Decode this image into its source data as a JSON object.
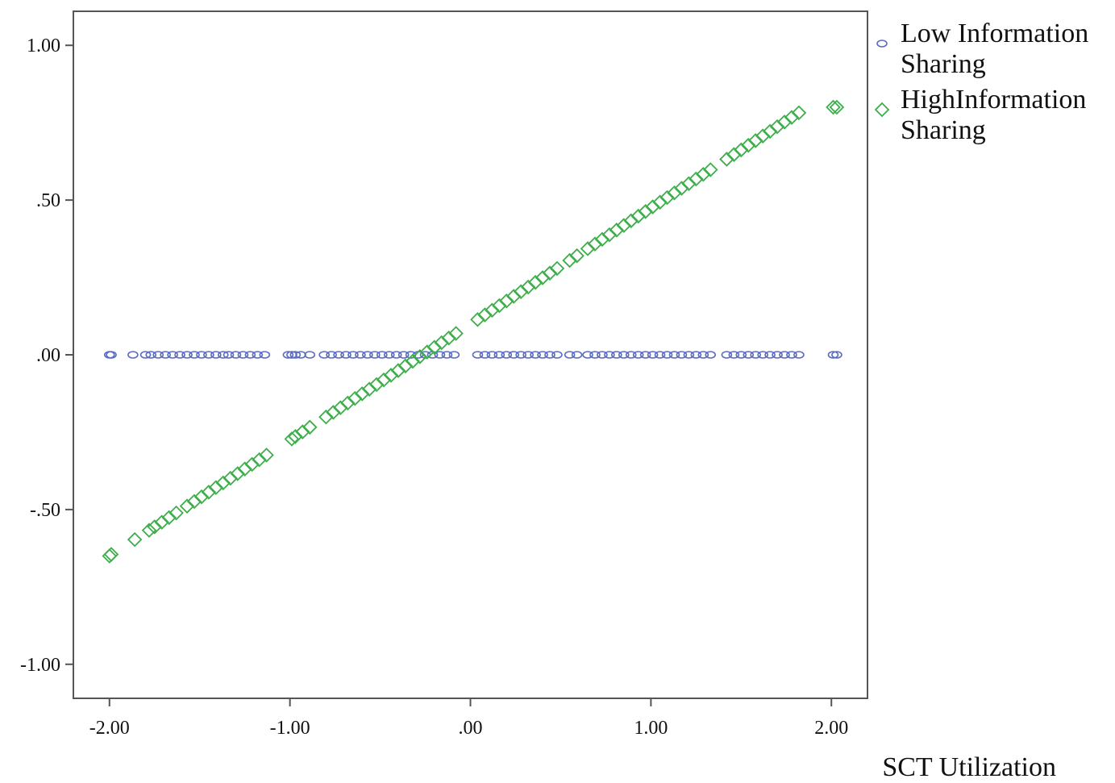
{
  "chart_data": {
    "type": "scatter",
    "xlabel": "SCT Utilization",
    "ylabel": "",
    "xlim": [
      -2.2,
      2.2
    ],
    "ylim": [
      -1.11,
      1.11
    ],
    "x_ticks": [
      -2,
      -1,
      0,
      1,
      2
    ],
    "x_tick_labels": [
      "-2.00",
      "-1.00",
      ".00",
      "1.00",
      "2.00"
    ],
    "y_ticks": [
      1,
      0.5,
      0,
      -0.5,
      -1
    ],
    "y_tick_labels": [
      "1.00",
      ".50",
      ".00",
      "-.50",
      "-1.00"
    ],
    "grid": false,
    "legend_position": "top-right, outside plot",
    "series": [
      {
        "name": "Low Information Sharing",
        "name_lines": [
          "Low Information",
          "Sharing"
        ],
        "marker": "circle",
        "color": "#5a6bc0",
        "x": [
          -2.0,
          -1.99,
          -1.87,
          -1.8,
          -1.77,
          -1.73,
          -1.69,
          -1.65,
          -1.61,
          -1.57,
          -1.53,
          -1.49,
          -1.45,
          -1.41,
          -1.37,
          -1.34,
          -1.3,
          -1.26,
          -1.22,
          -1.18,
          -1.14,
          -1.01,
          -0.99,
          -0.97,
          -0.94,
          -0.89,
          -0.81,
          -0.77,
          -0.73,
          -0.69,
          -0.65,
          -0.61,
          -0.57,
          -0.53,
          -0.49,
          -0.45,
          -0.41,
          -0.37,
          -0.33,
          -0.29,
          -0.25,
          -0.21,
          -0.17,
          -0.13,
          -0.09,
          0.04,
          0.08,
          0.12,
          0.16,
          0.2,
          0.24,
          0.28,
          0.32,
          0.36,
          0.4,
          0.44,
          0.48,
          0.55,
          0.59,
          0.65,
          0.69,
          0.73,
          0.77,
          0.81,
          0.85,
          0.89,
          0.93,
          0.97,
          1.01,
          1.05,
          1.09,
          1.13,
          1.17,
          1.21,
          1.25,
          1.29,
          1.33,
          1.42,
          1.46,
          1.5,
          1.54,
          1.58,
          1.62,
          1.66,
          1.7,
          1.74,
          1.78,
          1.82,
          2.01,
          2.03
        ],
        "y": [
          0,
          0,
          0,
          0,
          0,
          0,
          0,
          0,
          0,
          0,
          0,
          0,
          0,
          0,
          0,
          0,
          0,
          0,
          0,
          0,
          0,
          0,
          0,
          0,
          0,
          0,
          0,
          0,
          0,
          0,
          0,
          0,
          0,
          0,
          0,
          0,
          0,
          0,
          0,
          0,
          0,
          0,
          0,
          0,
          0,
          0,
          0,
          0,
          0,
          0,
          0,
          0,
          0,
          0,
          0,
          0,
          0,
          0,
          0,
          0,
          0,
          0,
          0,
          0,
          0,
          0,
          0,
          0,
          0,
          0,
          0,
          0,
          0,
          0,
          0,
          0,
          0,
          0,
          0,
          0,
          0,
          0,
          0,
          0,
          0,
          0,
          0,
          0,
          0,
          0
        ]
      },
      {
        "name": "HighInformation Sharing",
        "name_lines": [
          "HighInformation",
          "Sharing"
        ],
        "marker": "diamond",
        "color": "#3cae4a",
        "x": [
          -2.0,
          -1.99,
          -1.86,
          -1.78,
          -1.75,
          -1.71,
          -1.67,
          -1.63,
          -1.57,
          -1.53,
          -1.49,
          -1.45,
          -1.41,
          -1.37,
          -1.33,
          -1.29,
          -1.25,
          -1.21,
          -1.17,
          -1.13,
          -0.99,
          -0.97,
          -0.93,
          -0.89,
          -0.8,
          -0.76,
          -0.72,
          -0.68,
          -0.64,
          -0.6,
          -0.56,
          -0.52,
          -0.48,
          -0.44,
          -0.4,
          -0.36,
          -0.32,
          -0.28,
          -0.24,
          -0.2,
          -0.16,
          -0.12,
          -0.08,
          0.04,
          0.08,
          0.12,
          0.16,
          0.2,
          0.24,
          0.28,
          0.32,
          0.36,
          0.4,
          0.44,
          0.48,
          0.55,
          0.59,
          0.65,
          0.69,
          0.73,
          0.77,
          0.81,
          0.85,
          0.89,
          0.93,
          0.97,
          1.01,
          1.05,
          1.09,
          1.13,
          1.17,
          1.21,
          1.25,
          1.29,
          1.33,
          1.42,
          1.46,
          1.5,
          1.54,
          1.58,
          1.62,
          1.66,
          1.7,
          1.74,
          1.78,
          1.82,
          2.01,
          2.03
        ],
        "y": [
          -0.65,
          -0.645,
          -0.597,
          -0.567,
          -0.556,
          -0.541,
          -0.526,
          -0.511,
          -0.489,
          -0.474,
          -0.459,
          -0.444,
          -0.429,
          -0.414,
          -0.399,
          -0.384,
          -0.369,
          -0.354,
          -0.339,
          -0.324,
          -0.272,
          -0.264,
          -0.249,
          -0.234,
          -0.201,
          -0.186,
          -0.171,
          -0.156,
          -0.141,
          -0.126,
          -0.111,
          -0.096,
          -0.081,
          -0.066,
          -0.051,
          -0.036,
          -0.021,
          -0.006,
          0.009,
          0.024,
          0.039,
          0.054,
          0.069,
          0.114,
          0.129,
          0.144,
          0.159,
          0.174,
          0.189,
          0.204,
          0.219,
          0.234,
          0.249,
          0.264,
          0.279,
          0.305,
          0.32,
          0.343,
          0.358,
          0.373,
          0.388,
          0.403,
          0.418,
          0.433,
          0.448,
          0.463,
          0.478,
          0.493,
          0.508,
          0.523,
          0.538,
          0.553,
          0.568,
          0.583,
          0.598,
          0.632,
          0.647,
          0.662,
          0.677,
          0.692,
          0.707,
          0.722,
          0.737,
          0.752,
          0.767,
          0.782,
          0.8,
          0.8
        ]
      }
    ]
  }
}
